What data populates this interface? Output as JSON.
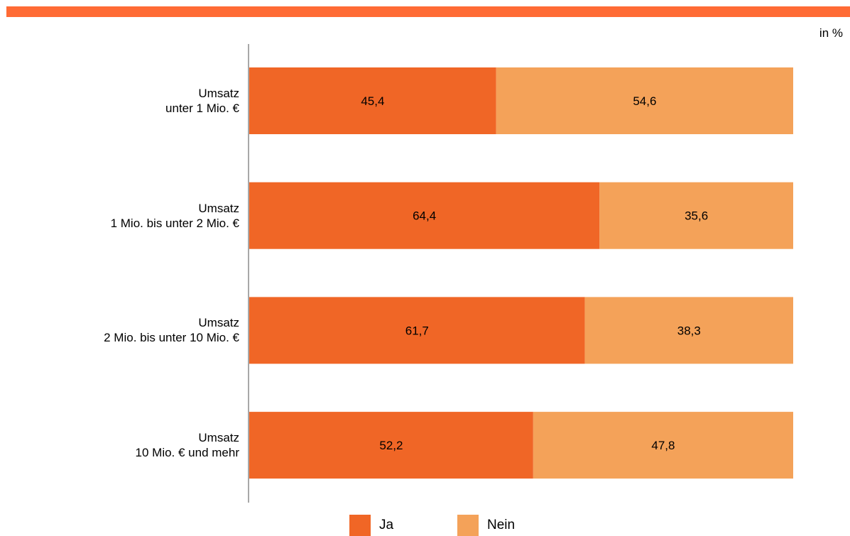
{
  "unit": "in %",
  "colors": {
    "top_bar": "#ff6b35",
    "ja": "#f06626",
    "nein": "#f4a259",
    "axis": "#8c8c8c"
  },
  "chart_data": {
    "type": "bar",
    "orientation": "horizontal",
    "stacked": true,
    "categories": [
      [
        "Umsatz",
        "unter 1 Mio. €"
      ],
      [
        "Umsatz",
        "1 Mio. bis unter 2 Mio. €"
      ],
      [
        "Umsatz",
        "2 Mio. bis unter 10 Mio. €"
      ],
      [
        "Umsatz",
        "10 Mio. € und mehr"
      ]
    ],
    "series": [
      {
        "name": "Ja",
        "values": [
          45.4,
          64.4,
          61.7,
          52.2
        ],
        "labels": [
          "45,4",
          "64,4",
          "61,7",
          "52,2"
        ]
      },
      {
        "name": "Nein",
        "values": [
          54.6,
          35.6,
          38.3,
          47.8
        ],
        "labels": [
          "54,6",
          "35,6",
          "38,3",
          "47,8"
        ]
      }
    ],
    "xlim": [
      0,
      100
    ],
    "legend": "bottom",
    "grid": false
  }
}
